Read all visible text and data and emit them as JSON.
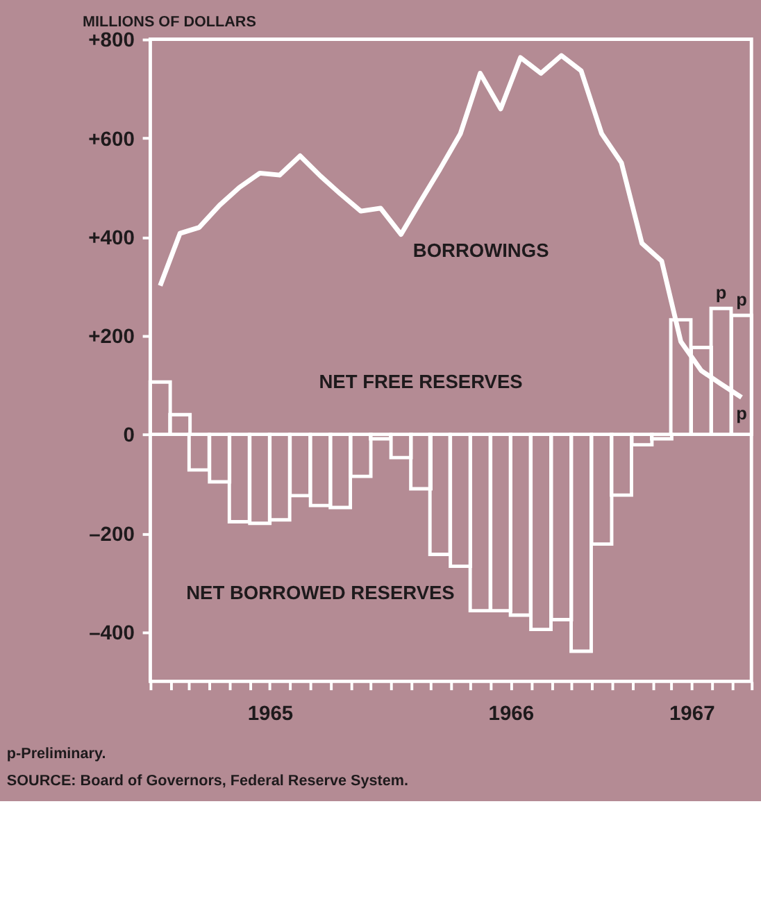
{
  "chart_data": {
    "type": "bar",
    "ylabel": "MILLIONS OF DOLLARS",
    "x": [
      "1965-01-16",
      "1965-02-15",
      "1965-03-16",
      "1965-04-16",
      "1965-05-16",
      "1965-06-16",
      "1965-07-16",
      "1965-08-16",
      "1965-09-16",
      "1965-10-16",
      "1965-11-16",
      "1965-12-16",
      "1966-01-16",
      "1966-02-15",
      "1966-03-16",
      "1966-04-16",
      "1966-05-16",
      "1966-06-16",
      "1966-07-16",
      "1966-08-16",
      "1966-09-16",
      "1966-10-16",
      "1966-11-16",
      "1966-12-16",
      "1967-01-16",
      "1967-02-15",
      "1967-03-16",
      "1967-04-16",
      "1967-05-16",
      "1967-06-16"
    ],
    "series": [
      {
        "color": "#ffffff",
        "values": [
          106,
          40,
          -72,
          -96,
          -177,
          -180,
          -173,
          -124,
          -144,
          -148,
          -85,
          -9,
          -47,
          -110,
          -243,
          -267,
          -357,
          -357,
          -366,
          -395,
          -375,
          -439,
          -222,
          -123,
          -21,
          -9,
          232,
          176,
          255,
          241
        ]
      },
      {
        "type": "line",
        "color": "#ffffff",
        "values": [
          301,
          407,
          419,
          464,
          500,
          529,
          525,
          564,
          523,
          487,
          452,
          458,
          405,
          473,
          537,
          609,
          731,
          659,
          763,
          731,
          767,
          736,
          609,
          550,
          387,
          351,
          188,
          129,
          102,
          75
        ]
      }
    ],
    "xlim": [
      "1965-01-01",
      "1967-07-01"
    ],
    "xticks": [
      {
        "value": "1965-01-01",
        "label": null
      },
      {
        "value": "1965-02-01",
        "label": null
      },
      {
        "value": "1965-03-01",
        "label": null
      },
      {
        "value": "1965-04-01",
        "label": null
      },
      {
        "value": "1965-05-01",
        "label": null
      },
      {
        "value": "1965-06-01",
        "label": null
      },
      {
        "value": "1965-07-01",
        "label": "1965"
      },
      {
        "value": "1965-08-01",
        "label": null
      },
      {
        "value": "1965-09-01",
        "label": null
      },
      {
        "value": "1965-10-01",
        "label": null
      },
      {
        "value": "1965-11-01",
        "label": null
      },
      {
        "value": "1965-12-01",
        "label": null
      },
      {
        "value": "1966-01-01",
        "label": null
      },
      {
        "value": "1966-02-01",
        "label": null
      },
      {
        "value": "1966-03-01",
        "label": null
      },
      {
        "value": "1966-04-01",
        "label": null
      },
      {
        "value": "1966-05-01",
        "label": null
      },
      {
        "value": "1966-06-01",
        "label": null
      },
      {
        "value": "1966-07-01",
        "label": "1966"
      },
      {
        "value": "1966-08-01",
        "label": null
      },
      {
        "value": "1966-09-01",
        "label": null
      },
      {
        "value": "1966-10-01",
        "label": null
      },
      {
        "value": "1966-11-01",
        "label": null
      },
      {
        "value": "1966-12-01",
        "label": null
      },
      {
        "value": "1967-01-01",
        "label": null
      },
      {
        "value": "1967-02-01",
        "label": null
      },
      {
        "value": "1967-03-01",
        "label": null
      },
      {
        "value": "1967-04-01",
        "label": "1967"
      },
      {
        "value": "1967-05-01",
        "label": null
      },
      {
        "value": "1967-06-01",
        "label": null
      },
      {
        "value": "1967-07-01",
        "label": null
      }
    ],
    "ylim": [
      -500,
      800
    ],
    "yticks": [
      {
        "value": 800,
        "label": "+800"
      },
      {
        "value": 600,
        "label": "+600"
      },
      {
        "value": 400,
        "label": "+400"
      },
      {
        "value": 200,
        "label": "+200"
      },
      {
        "value": 0,
        "label": "0"
      },
      {
        "value": -200,
        "label": "–200"
      },
      {
        "value": -400,
        "label": "–400"
      }
    ],
    "grid": false,
    "annotations": [
      "BORROWINGS",
      "NET FREE RESERVES",
      "NET BORROWED RESERVES",
      {
        "text": "p",
        "x": "1967-05-16",
        "y": 255
      },
      {
        "text": "p",
        "x": "1967-06-16",
        "y": 241
      },
      {
        "text": "p",
        "x": "1967-06-16",
        "y": 75
      },
      "p-Preliminary.",
      "SOURCE: Board of Governors, Federal Reserve System."
    ]
  }
}
